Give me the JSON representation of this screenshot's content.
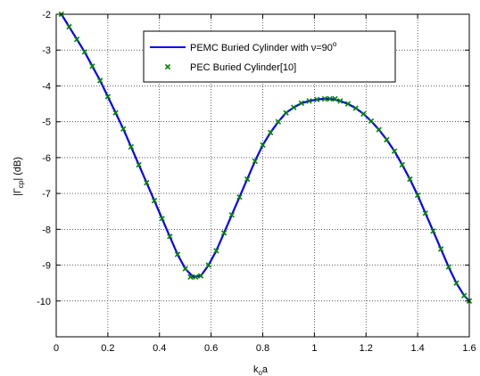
{
  "chart_data": {
    "type": "line",
    "title": "",
    "xlabel": {
      "main": "k",
      "sub": "o",
      "tail": "a"
    },
    "ylabel": {
      "pre": "|Γ",
      "sub": "cp",
      "post": "| (dB)"
    },
    "xlim": [
      0,
      1.6
    ],
    "ylim": [
      -11,
      -2
    ],
    "xticks": [
      0,
      0.2,
      0.4,
      0.6,
      0.8,
      1,
      1.2,
      1.4,
      1.6
    ],
    "xtick_labels": [
      "0",
      "0.2",
      "0.4",
      "0.6",
      "0.8",
      "1",
      "1.2",
      "1.4",
      "1.6"
    ],
    "yticks": [
      -10,
      -9,
      -8,
      -7,
      -6,
      -5,
      -4,
      -3,
      -2
    ],
    "ytick_labels": [
      "-10",
      "-9",
      "-8",
      "-7",
      "-6",
      "-5",
      "-4",
      "-3",
      "-2"
    ],
    "grid": true,
    "legend_position": "top-right",
    "series": [
      {
        "name": "PEMC Buried Cylinder with ν=90°",
        "name_parts": {
          "text": "PEMC Buried Cylinder with ν=90",
          "sup": "o"
        },
        "style": "solid line",
        "color": "#0000ff",
        "x": [
          0.02,
          0.05,
          0.08,
          0.11,
          0.14,
          0.17,
          0.2,
          0.23,
          0.26,
          0.29,
          0.32,
          0.35,
          0.38,
          0.41,
          0.44,
          0.47,
          0.5,
          0.53,
          0.56,
          0.59,
          0.62,
          0.65,
          0.68,
          0.71,
          0.74,
          0.77,
          0.8,
          0.83,
          0.86,
          0.89,
          0.92,
          0.95,
          0.98,
          1.01,
          1.04,
          1.07,
          1.1,
          1.13,
          1.16,
          1.19,
          1.22,
          1.25,
          1.28,
          1.31,
          1.34,
          1.37,
          1.4,
          1.43,
          1.46,
          1.49,
          1.52,
          1.55,
          1.58,
          1.6
        ],
        "y": [
          -2.0,
          -2.35,
          -2.7,
          -3.05,
          -3.45,
          -3.85,
          -4.3,
          -4.75,
          -5.2,
          -5.7,
          -6.2,
          -6.7,
          -7.2,
          -7.7,
          -8.2,
          -8.7,
          -9.1,
          -9.33,
          -9.3,
          -9.0,
          -8.6,
          -8.1,
          -7.6,
          -7.1,
          -6.6,
          -6.1,
          -5.65,
          -5.3,
          -5.0,
          -4.75,
          -4.6,
          -4.48,
          -4.42,
          -4.38,
          -4.36,
          -4.37,
          -4.42,
          -4.5,
          -4.62,
          -4.78,
          -4.98,
          -5.22,
          -5.5,
          -5.82,
          -6.2,
          -6.6,
          -7.05,
          -7.55,
          -8.05,
          -8.55,
          -9.05,
          -9.5,
          -9.85,
          -10.0
        ]
      },
      {
        "name": "PEC Buried Cylinder[10]",
        "style": "markers (x)",
        "color": "#008000",
        "x": [
          0.02,
          0.05,
          0.08,
          0.11,
          0.14,
          0.17,
          0.2,
          0.23,
          0.26,
          0.29,
          0.32,
          0.35,
          0.38,
          0.41,
          0.44,
          0.47,
          0.5,
          0.52,
          0.54,
          0.56,
          0.59,
          0.62,
          0.65,
          0.68,
          0.71,
          0.74,
          0.77,
          0.8,
          0.83,
          0.86,
          0.89,
          0.92,
          0.95,
          0.98,
          1.01,
          1.04,
          1.06,
          1.08,
          1.1,
          1.13,
          1.16,
          1.19,
          1.22,
          1.25,
          1.28,
          1.31,
          1.34,
          1.37,
          1.4,
          1.43,
          1.46,
          1.49,
          1.52,
          1.55,
          1.58,
          1.6
        ],
        "y": [
          -2.0,
          -2.35,
          -2.7,
          -3.05,
          -3.45,
          -3.85,
          -4.3,
          -4.75,
          -5.2,
          -5.7,
          -6.2,
          -6.7,
          -7.2,
          -7.7,
          -8.2,
          -8.7,
          -9.1,
          -9.33,
          -9.33,
          -9.3,
          -9.0,
          -8.6,
          -8.1,
          -7.6,
          -7.1,
          -6.6,
          -6.1,
          -5.65,
          -5.3,
          -5.0,
          -4.75,
          -4.6,
          -4.48,
          -4.42,
          -4.38,
          -4.36,
          -4.36,
          -4.36,
          -4.42,
          -4.5,
          -4.62,
          -4.78,
          -4.98,
          -5.22,
          -5.5,
          -5.82,
          -6.2,
          -6.6,
          -7.05,
          -7.55,
          -8.05,
          -8.55,
          -9.05,
          -9.5,
          -9.85,
          -10.0
        ]
      }
    ]
  }
}
